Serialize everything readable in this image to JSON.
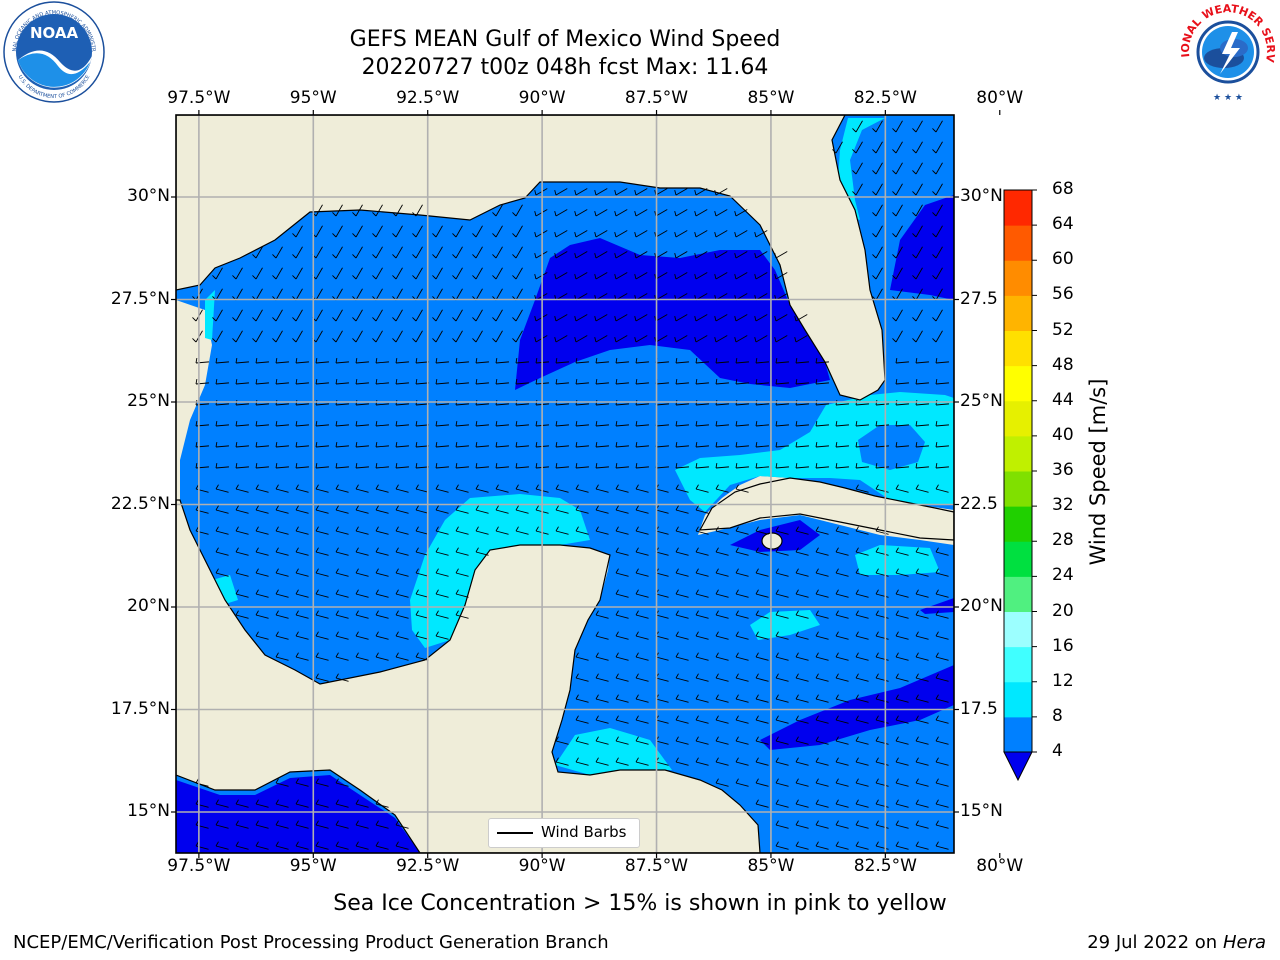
{
  "header": {
    "title_line1": "GEFS MEAN Gulf of Mexico Wind Speed",
    "title_line2": "20220727 t00z 048h fcst   Max: 11.64"
  },
  "logos": {
    "noaa_text": "NOAA",
    "noaa_ring_top": "NATIONAL OCEANIC AND ATMOSPHERIC ADMINISTRATION",
    "noaa_ring_bottom": "U.S. DEPARTMENT OF COMMERCE",
    "nws_ring": "NATIONAL WEATHER SERVICE"
  },
  "map": {
    "x_ticks": [
      {
        "value": -97.5,
        "label": "97.5°W"
      },
      {
        "value": -95,
        "label": "95°W"
      },
      {
        "value": -92.5,
        "label": "92.5°W"
      },
      {
        "value": -90,
        "label": "90°W"
      },
      {
        "value": -87.5,
        "label": "87.5°W"
      },
      {
        "value": -85,
        "label": "85°W"
      },
      {
        "value": -82.5,
        "label": "82.5°W"
      },
      {
        "value": -80,
        "label": "80°W"
      }
    ],
    "y_ticks": [
      {
        "value": 30,
        "label": "30°N"
      },
      {
        "value": 27.5,
        "label": "27.5°N"
      },
      {
        "value": 25,
        "label": "25°N"
      },
      {
        "value": 22.5,
        "label": "22.5°N"
      },
      {
        "value": 20,
        "label": "20°N"
      },
      {
        "value": 17.5,
        "label": "17.5°N"
      },
      {
        "value": 15,
        "label": "15°N"
      }
    ],
    "y_ticks_right": [
      {
        "value": 30,
        "label": "30°N"
      },
      {
        "value": 27.5,
        "label": "27.5"
      },
      {
        "value": 25,
        "label": "25°N"
      },
      {
        "value": 22.5,
        "label": "22.5"
      },
      {
        "value": 20,
        "label": "20°N"
      },
      {
        "value": 17.5,
        "label": "17.5"
      },
      {
        "value": 15,
        "label": "15°N"
      }
    ],
    "legend_label": "Wind Barbs",
    "land_color": "#efedd9",
    "grid": true
  },
  "colorbar": {
    "label": "Wind Speed [m/s]",
    "levels": [
      4,
      8,
      12,
      16,
      20,
      24,
      28,
      32,
      36,
      40,
      44,
      48,
      52,
      56,
      60,
      64,
      68
    ],
    "colors": [
      "#0080ff",
      "#00e8ff",
      "#40ffff",
      "#9cffff",
      "#50f080",
      "#00e040",
      "#20d000",
      "#80e000",
      "#c0f000",
      "#e6f000",
      "#ffff00",
      "#ffe000",
      "#ffb400",
      "#ff8c00",
      "#ff5a00",
      "#ff2800"
    ],
    "under_color": "#0000ee"
  },
  "caption": "Sea Ice Concentration > 15% is shown in pink to yellow",
  "footer": {
    "left": "NCEP/EMC/Verification Post Processing Product Generation Branch",
    "right_prefix": "29 Jul 2022 on ",
    "right_machine": "Hera"
  }
}
